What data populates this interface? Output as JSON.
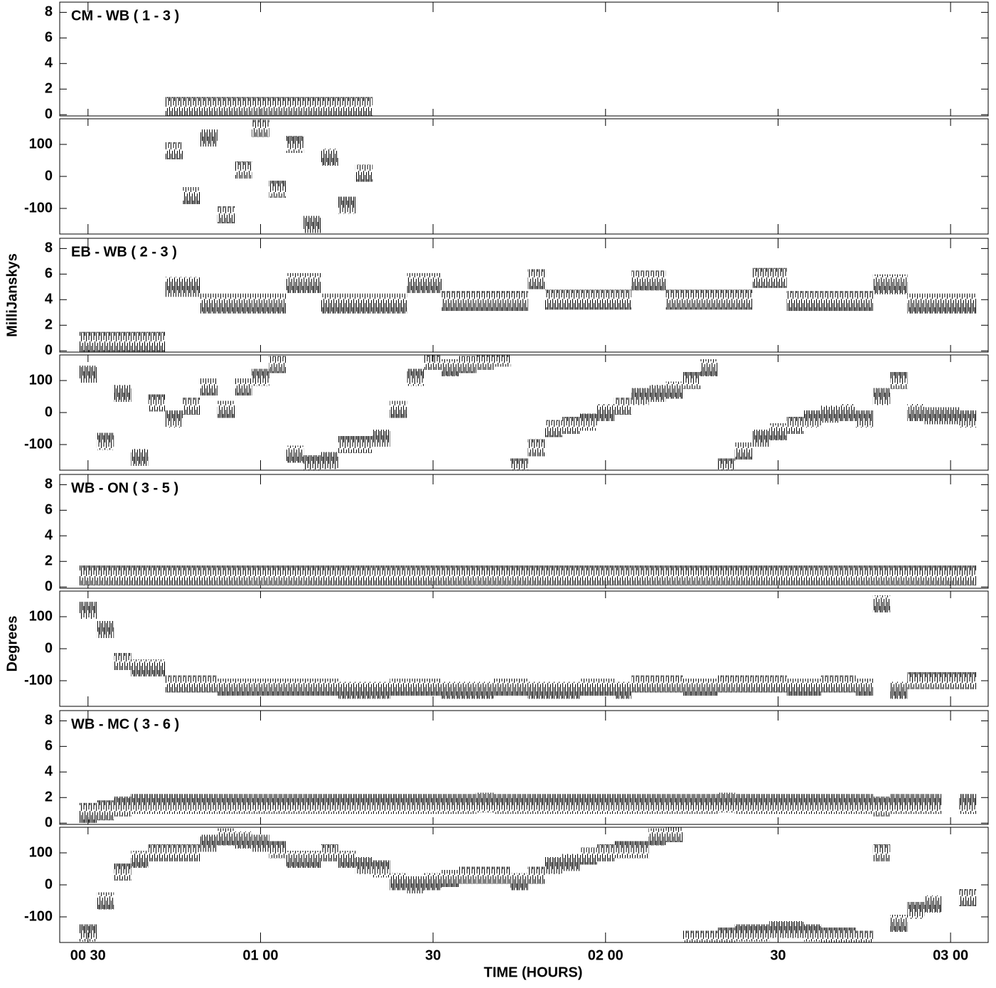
{
  "axes": {
    "xlabel": "TIME (HOURS)",
    "ylabel_amplitude": "MilliJanskys",
    "ylabel_phase": "Degrees",
    "xlim": [
      0.418,
      3.109
    ],
    "xticks": [
      {
        "value": 0.5,
        "label": "00 30"
      },
      {
        "value": 1.0,
        "label": "01 00"
      },
      {
        "value": 1.5,
        "label": "30"
      },
      {
        "value": 2.0,
        "label": "02 00"
      },
      {
        "value": 2.5,
        "label": "30"
      },
      {
        "value": 3.0,
        "label": "03 00"
      }
    ],
    "amp_ylim": [
      -0.1,
      8.8
    ],
    "amp_yticks": [
      0,
      2,
      4,
      6,
      8
    ],
    "phase_ylim": [
      -180,
      180
    ],
    "phase_yticks": [
      -100,
      0,
      100
    ],
    "x": [
      0.45,
      0.5,
      0.55,
      0.6,
      0.65,
      0.7,
      0.75,
      0.8,
      0.85,
      0.9,
      0.95,
      1.0,
      1.05,
      1.1,
      1.15,
      1.2,
      1.25,
      1.3,
      1.35,
      1.4,
      1.45,
      1.5,
      1.55,
      1.6,
      1.65,
      1.7,
      1.75,
      1.8,
      1.85,
      1.9,
      1.95,
      2.0,
      2.05,
      2.1,
      2.15,
      2.2,
      2.25,
      2.3,
      2.35,
      2.4,
      2.45,
      2.5,
      2.55,
      2.6,
      2.65,
      2.7,
      2.75,
      2.8,
      2.85,
      2.9,
      2.95,
      3.0,
      3.05,
      3.1
    ]
  },
  "chart_data": [
    {
      "type": "line",
      "title": "CM - WB ( 1 - 3 )",
      "amplitude": [
        null,
        null,
        null,
        null,
        null,
        null,
        0.6,
        0.6,
        0.6,
        0.6,
        0.6,
        0.6,
        0.6,
        0.6,
        0.6,
        0.6,
        0.6,
        0.6,
        null,
        null,
        null,
        null,
        null,
        null,
        null,
        null,
        null,
        null,
        null,
        null,
        null,
        null,
        null,
        null,
        null,
        null,
        null,
        null,
        null,
        null,
        null,
        null,
        null,
        null,
        null,
        null,
        null,
        null,
        null,
        null,
        null,
        null,
        null,
        null
      ],
      "phase": [
        null,
        null,
        null,
        null,
        null,
        null,
        80,
        -60,
        120,
        -120,
        20,
        150,
        -40,
        100,
        -150,
        60,
        -90,
        10,
        null,
        null,
        null,
        null,
        null,
        null,
        null,
        null,
        null,
        null,
        null,
        null,
        null,
        null,
        null,
        null,
        null,
        null,
        null,
        null,
        null,
        null,
        null,
        null,
        null,
        null,
        null,
        null,
        null,
        null,
        null,
        null,
        null,
        null,
        null,
        null
      ]
    },
    {
      "type": "line",
      "title": "EB - WB ( 2 - 3 )",
      "amplitude": [
        null,
        0.7,
        0.7,
        0.7,
        0.7,
        0.7,
        5.0,
        5.0,
        3.7,
        3.7,
        3.7,
        3.7,
        3.7,
        5.3,
        5.3,
        3.7,
        3.7,
        3.7,
        3.7,
        3.7,
        5.3,
        5.3,
        3.9,
        3.9,
        3.9,
        3.9,
        3.9,
        5.6,
        4.0,
        4.0,
        4.0,
        4.0,
        4.0,
        5.5,
        5.5,
        4.0,
        4.0,
        4.0,
        4.0,
        4.0,
        5.7,
        5.7,
        3.9,
        3.9,
        3.9,
        3.9,
        3.9,
        5.2,
        5.2,
        3.7,
        3.7,
        3.7,
        3.7,
        null
      ],
      "phase": [
        null,
        120,
        -90,
        60,
        -140,
        30,
        -20,
        20,
        80,
        10,
        80,
        110,
        150,
        -130,
        -160,
        -150,
        -100,
        -100,
        -80,
        10,
        110,
        160,
        140,
        150,
        160,
        170,
        -170,
        -110,
        -50,
        -40,
        -30,
        0,
        20,
        50,
        60,
        70,
        100,
        140,
        -170,
        -120,
        -80,
        -60,
        -40,
        -20,
        -5,
        0,
        -20,
        50,
        100,
        0,
        -10,
        -10,
        -20,
        null
      ]
    },
    {
      "type": "line",
      "title": "WB - ON ( 3 - 5 )",
      "amplitude": [
        null,
        0.9,
        0.9,
        0.9,
        0.9,
        0.9,
        0.9,
        0.9,
        0.9,
        0.9,
        0.9,
        0.9,
        0.9,
        0.9,
        0.9,
        0.9,
        0.9,
        0.9,
        0.9,
        0.9,
        0.9,
        0.9,
        0.9,
        0.9,
        0.9,
        0.9,
        0.9,
        0.9,
        0.9,
        0.9,
        0.9,
        0.9,
        0.9,
        0.9,
        0.9,
        0.9,
        0.9,
        0.9,
        0.9,
        0.9,
        0.9,
        0.9,
        0.9,
        0.9,
        0.9,
        0.9,
        0.9,
        0.9,
        0.9,
        0.9,
        0.9,
        0.9,
        0.9,
        null
      ],
      "phase": [
        null,
        120,
        60,
        -40,
        -60,
        -60,
        -110,
        -110,
        -110,
        -120,
        -120,
        -120,
        -120,
        -120,
        -120,
        -120,
        -130,
        -130,
        -130,
        -120,
        -120,
        -120,
        -130,
        -130,
        -130,
        -120,
        -120,
        -130,
        -130,
        -130,
        -120,
        -120,
        -130,
        -110,
        -110,
        -110,
        -120,
        -120,
        -110,
        -110,
        -110,
        -110,
        -120,
        -120,
        -110,
        -110,
        -120,
        140,
        -130,
        -100,
        -100,
        -100,
        -100,
        null
      ]
    },
    {
      "type": "line",
      "title": "WB - MC ( 3 - 6 )",
      "amplitude": [
        null,
        0.8,
        1.0,
        1.3,
        1.5,
        1.5,
        1.5,
        1.5,
        1.5,
        1.5,
        1.5,
        1.5,
        1.5,
        1.5,
        1.5,
        1.5,
        1.5,
        1.5,
        1.5,
        1.5,
        1.5,
        1.5,
        1.5,
        1.5,
        1.6,
        1.5,
        1.5,
        1.5,
        1.5,
        1.5,
        1.5,
        1.5,
        1.5,
        1.5,
        1.5,
        1.5,
        1.5,
        1.5,
        1.6,
        1.5,
        1.5,
        1.5,
        1.5,
        1.5,
        1.5,
        1.5,
        1.5,
        1.3,
        1.5,
        1.5,
        1.5,
        null,
        1.5,
        null
      ],
      "phase": [
        null,
        -150,
        -50,
        40,
        80,
        100,
        100,
        100,
        130,
        150,
        140,
        130,
        110,
        80,
        80,
        100,
        80,
        60,
        50,
        10,
        0,
        10,
        20,
        30,
        30,
        30,
        10,
        30,
        60,
        70,
        90,
        100,
        110,
        110,
        150,
        160,
        -170,
        -170,
        -160,
        -150,
        -150,
        -140,
        -140,
        -150,
        -160,
        -160,
        -170,
        100,
        -120,
        -80,
        -60,
        null,
        -40,
        null
      ]
    }
  ]
}
